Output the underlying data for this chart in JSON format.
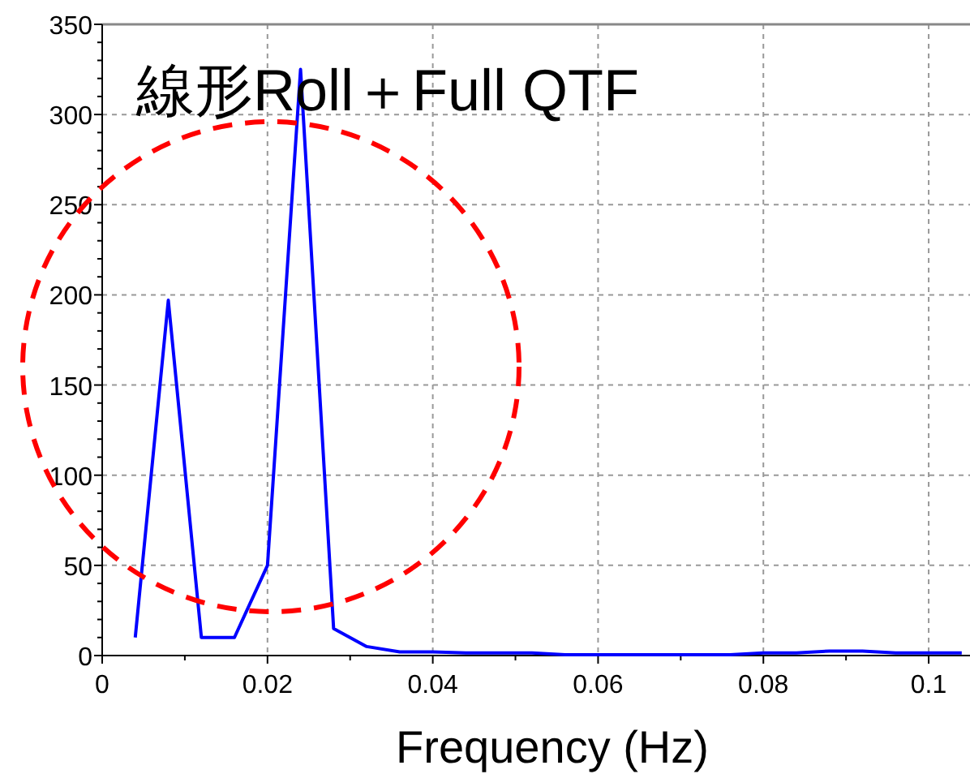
{
  "chart_data": {
    "type": "line",
    "title": "線形Roll＋Full QTF",
    "xlabel": "Frequency (Hz)",
    "x": [
      0.004,
      0.008,
      0.012,
      0.016,
      0.02,
      0.024,
      0.028,
      0.032,
      0.036,
      0.04,
      0.044,
      0.048,
      0.052,
      0.056,
      0.06,
      0.064,
      0.068,
      0.072,
      0.076,
      0.08,
      0.084,
      0.088,
      0.092,
      0.096,
      0.1,
      0.104
    ],
    "series": [
      {
        "color": "#0000ff",
        "values": [
          10,
          197,
          10,
          10,
          50,
          325,
          15,
          5,
          2,
          2,
          1.5,
          1.5,
          1.5,
          0.5,
          0.5,
          0.5,
          0.5,
          0.5,
          0.5,
          1.5,
          1.5,
          2.5,
          2.5,
          1.5,
          1.5,
          1.5
        ]
      }
    ],
    "xlim": [
      0,
      0.105
    ],
    "ylim": [
      0,
      350
    ],
    "xticks": [
      0,
      0.02,
      0.04,
      0.06,
      0.08,
      0.1
    ],
    "yticks": [
      0,
      50,
      100,
      150,
      200,
      250,
      300,
      350
    ],
    "grid": true,
    "marker": "none",
    "line_style": "solid"
  }
}
